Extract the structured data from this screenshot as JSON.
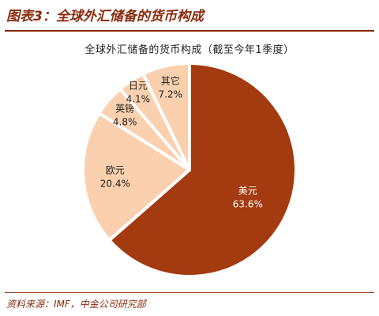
{
  "figure_caption": "图表3：全球外汇储备的货币构成",
  "source_note": "资料来源：IMF，中金公司研究部",
  "colors": {
    "accent": "#8B2A0C",
    "slice_main": "#A33A10",
    "slice_light": "#FAD0AE",
    "slice_edge": "#ffffff"
  },
  "chart_data": {
    "type": "pie",
    "title": "全球外汇储备的货币构成（截至今年1季度）",
    "slices": [
      {
        "label": "美元",
        "value": 63.6,
        "value_label": "63.6%"
      },
      {
        "label": "欧元",
        "value": 20.4,
        "value_label": "20.4%"
      },
      {
        "label": "英镑",
        "value": 4.8,
        "value_label": "4.8%"
      },
      {
        "label": "日元",
        "value": 4.1,
        "value_label": "4.1%"
      },
      {
        "label": "其它",
        "value": 7.2,
        "value_label": "7.2%"
      }
    ]
  }
}
